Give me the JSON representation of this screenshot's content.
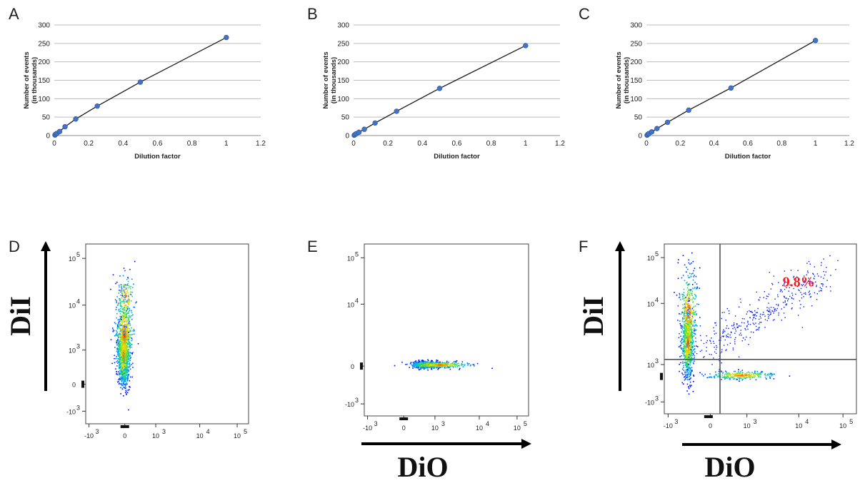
{
  "colors": {
    "marker": "#4472c4",
    "fit_line": "#1a1a1a",
    "gridline": "#bdbdbd",
    "percent_label": "#ff1a1a",
    "density_low": "#0000ff",
    "density_high": "#ff0000"
  },
  "chart_data": [
    {
      "panel": "A",
      "type": "scatter",
      "xlabel": "Dilution factor",
      "ylabel": "Number of events (in thousands)",
      "ylabel_lines": [
        "Number of events",
        "(in thousands)"
      ],
      "xlim": [
        0,
        1.2
      ],
      "ylim": [
        0,
        300
      ],
      "xticks": [
        "0",
        "0.2",
        "0.4",
        "0.6",
        "0.8",
        "1",
        "1.2"
      ],
      "yticks": [
        "0",
        "50",
        "100",
        "150",
        "200",
        "250",
        "300"
      ],
      "grid": "horizontal",
      "trendline": true,
      "points": [
        [
          0.0039,
          1.5
        ],
        [
          0.0078,
          3.5
        ],
        [
          0.0156,
          6
        ],
        [
          0.03125,
          11
        ],
        [
          0.0625,
          24
        ],
        [
          0.125,
          45
        ],
        [
          0.25,
          80
        ],
        [
          0.5,
          145
        ],
        [
          1,
          266
        ]
      ]
    },
    {
      "panel": "B",
      "type": "scatter",
      "xlabel": "Dilution factor",
      "ylabel": "Number of events (in thousands)",
      "ylabel_lines": [
        "Number of events",
        "(in thousands)"
      ],
      "xlim": [
        0,
        1.2
      ],
      "ylim": [
        0,
        300
      ],
      "xticks": [
        "0",
        "0.2",
        "0.4",
        "0.6",
        "0.8",
        "1",
        "1.2"
      ],
      "yticks": [
        "0",
        "50",
        "100",
        "150",
        "200",
        "250",
        "300"
      ],
      "grid": "horizontal",
      "trendline": true,
      "points": [
        [
          0.0039,
          1
        ],
        [
          0.0078,
          2.5
        ],
        [
          0.0156,
          5
        ],
        [
          0.03125,
          9
        ],
        [
          0.0625,
          17
        ],
        [
          0.125,
          34
        ],
        [
          0.25,
          66
        ],
        [
          0.5,
          128
        ],
        [
          1,
          244
        ]
      ]
    },
    {
      "panel": "C",
      "type": "scatter",
      "xlabel": "Dilution factor",
      "ylabel": "Number of events (in thousands)",
      "ylabel_lines": [
        "Number of events",
        "(in thousands)"
      ],
      "xlim": [
        0,
        1.2
      ],
      "ylim": [
        0,
        300
      ],
      "xticks": [
        "0",
        "0.2",
        "0.4",
        "0.6",
        "0.8",
        "1",
        "1.2"
      ],
      "yticks": [
        "0",
        "50",
        "100",
        "150",
        "200",
        "250",
        "300"
      ],
      "grid": "horizontal",
      "trendline": true,
      "points": [
        [
          0.0039,
          1
        ],
        [
          0.0078,
          3
        ],
        [
          0.0156,
          5.5
        ],
        [
          0.03125,
          10
        ],
        [
          0.0625,
          19
        ],
        [
          0.125,
          36
        ],
        [
          0.25,
          69
        ],
        [
          0.5,
          129
        ],
        [
          1,
          258
        ]
      ]
    },
    {
      "panel": "D",
      "type": "scatter",
      "plot_kind": "flow-cytometry-density",
      "xlabel": "",
      "ylabel": "DiI",
      "x_scale": "biexponential",
      "y_scale": "biexponential",
      "xticks": [
        "-10",
        "0",
        "10",
        "10",
        "10"
      ],
      "xtick_exponents": [
        "3",
        "",
        "3",
        "4",
        "5"
      ],
      "yticks": [
        "-10",
        "0",
        "10",
        "10",
        "10"
      ],
      "ytick_exponents": [
        "3",
        "",
        "3",
        "4",
        "5"
      ],
      "population": "single DiI-positive / DiO-negative population"
    },
    {
      "panel": "E",
      "type": "scatter",
      "plot_kind": "flow-cytometry-density",
      "xlabel": "DiO",
      "ylabel": "",
      "x_scale": "biexponential",
      "y_scale": "biexponential",
      "xticks": [
        "-10",
        "0",
        "10",
        "10",
        "10"
      ],
      "xtick_exponents": [
        "3",
        "",
        "3",
        "4",
        "5"
      ],
      "yticks": [
        "-10",
        "0",
        "10",
        "10"
      ],
      "ytick_exponents": [
        "3",
        "",
        "4",
        "5"
      ],
      "population": "single DiO-positive / DiI-negative population"
    },
    {
      "panel": "F",
      "type": "scatter",
      "plot_kind": "flow-cytometry-density",
      "xlabel": "DiO",
      "ylabel": "DiI",
      "x_scale": "biexponential",
      "y_scale": "biexponential",
      "xticks": [
        "-10",
        "0",
        "10",
        "10",
        "10"
      ],
      "xtick_exponents": [
        "3",
        "",
        "3",
        "4",
        "5"
      ],
      "yticks": [
        "-10",
        "10",
        "10",
        "10"
      ],
      "ytick_exponents": [
        "3",
        "3",
        "4",
        "5"
      ],
      "quadrant_gates": true,
      "double_positive_percent": "9.8%"
    }
  ]
}
